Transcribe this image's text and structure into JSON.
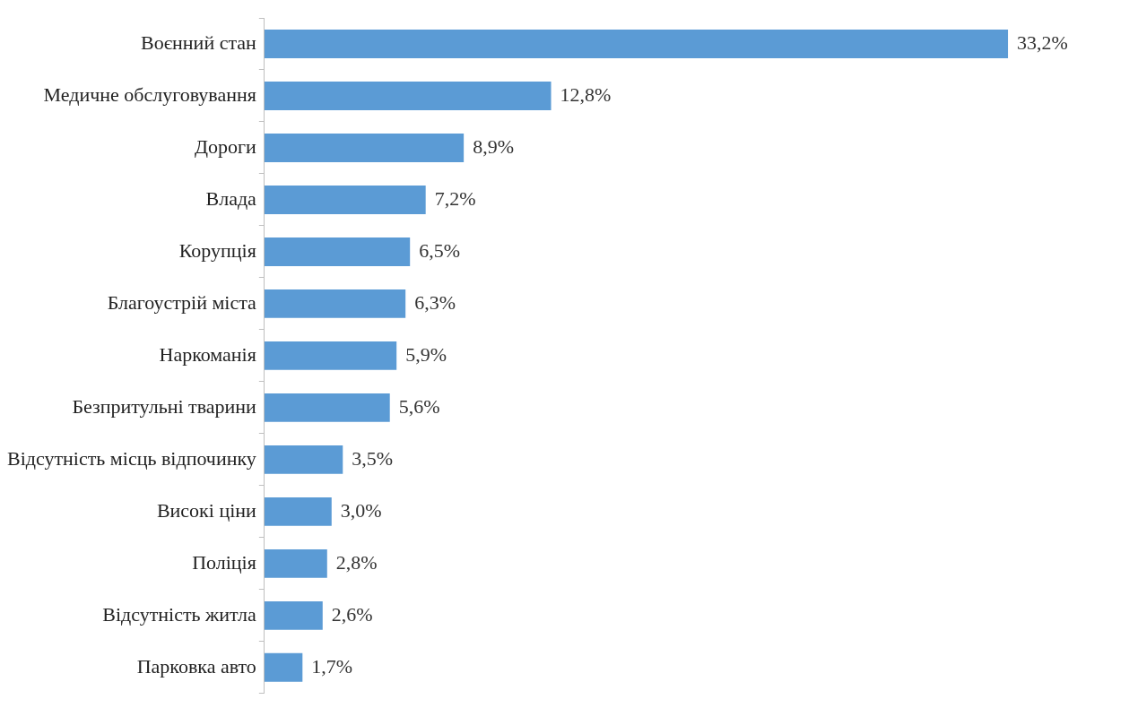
{
  "chart_data": {
    "type": "bar",
    "orientation": "horizontal",
    "categories": [
      "Воєнний стан",
      "Медичне обслуговування",
      "Дороги",
      "Влада",
      "Корупція",
      "Благоустрій міста",
      "Наркоманія",
      "Безпритульні тварини",
      "Відсутність місць відпочинку",
      "Високі ціни",
      "Поліція",
      "Відсутність житла",
      "Парковка авто"
    ],
    "values": [
      33.2,
      12.8,
      8.9,
      7.2,
      6.5,
      6.3,
      5.9,
      5.6,
      3.5,
      3.0,
      2.8,
      2.6,
      1.7
    ],
    "value_labels": [
      "33,2%",
      "12,8%",
      "8,9%",
      "7,2%",
      "6,5%",
      "6,3%",
      "5,9%",
      "5,6%",
      "3,5%",
      "3,0%",
      "2,8%",
      "2,6%",
      "1,7%"
    ],
    "color": "#5b9bd5",
    "grid": false,
    "legend": false
  }
}
